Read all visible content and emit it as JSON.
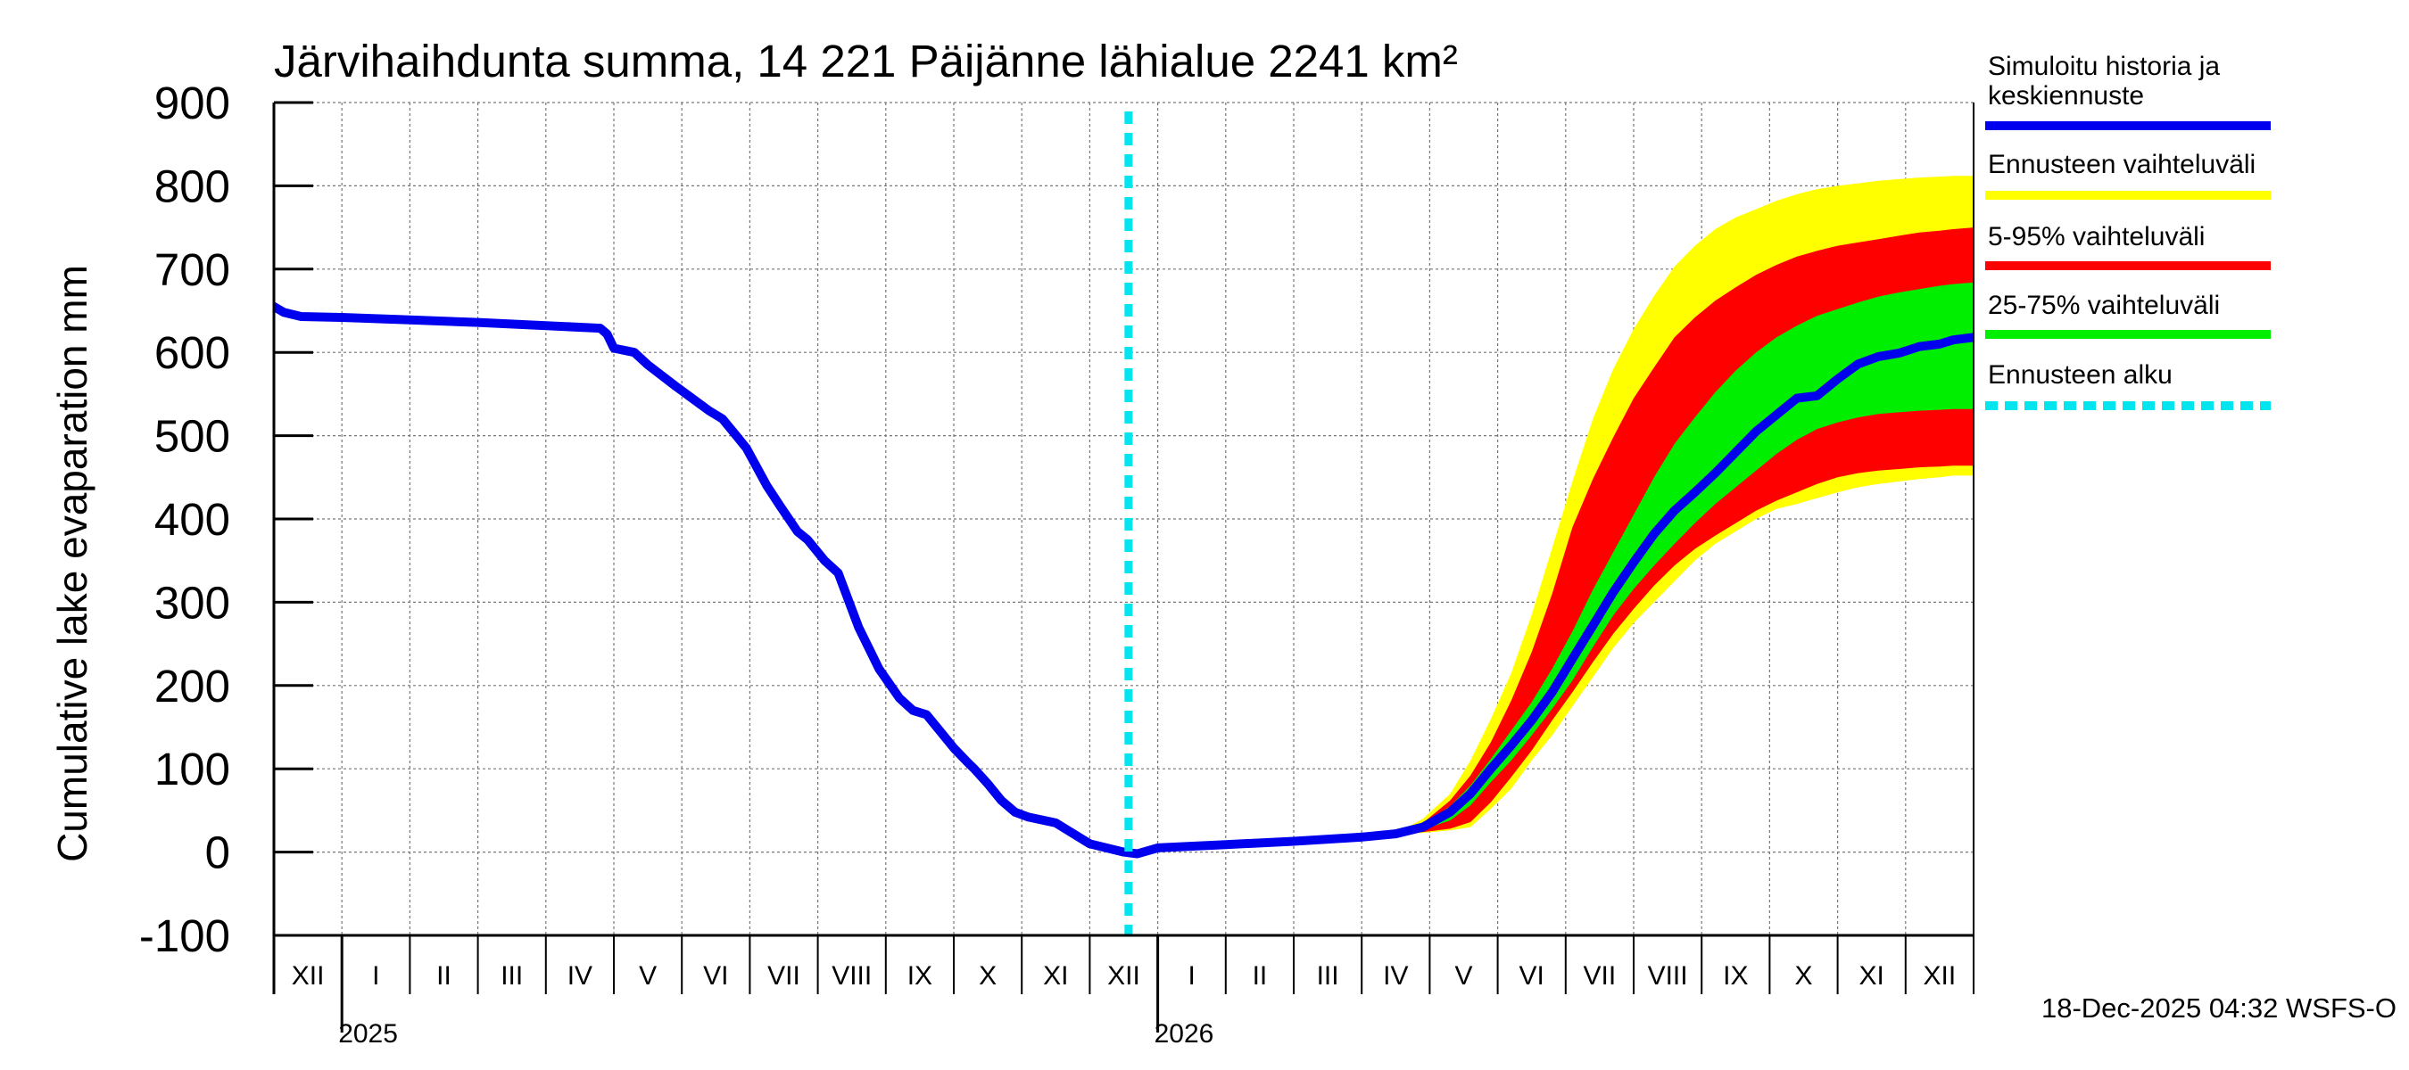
{
  "chart_data": {
    "type": "area",
    "title": "Järvihaihdunta summa, 14 221 Päijänne lähialue 2241 km²",
    "ylabel": "Cumulative lake evaparation   mm",
    "ylim": [
      -100,
      900
    ],
    "y_ticks": [
      -100,
      0,
      100,
      200,
      300,
      400,
      500,
      600,
      700,
      800,
      900
    ],
    "xlim": [
      -1.0,
      24.0
    ],
    "month_labels": [
      {
        "label": "XII",
        "x": -0.5
      },
      {
        "label": "I",
        "x": 0.5
      },
      {
        "label": "II",
        "x": 1.5
      },
      {
        "label": "III",
        "x": 2.5
      },
      {
        "label": "IV",
        "x": 3.5
      },
      {
        "label": "V",
        "x": 4.5
      },
      {
        "label": "VI",
        "x": 5.5
      },
      {
        "label": "VII",
        "x": 6.5
      },
      {
        "label": "VIII",
        "x": 7.5
      },
      {
        "label": "IX",
        "x": 8.5
      },
      {
        "label": "X",
        "x": 9.5
      },
      {
        "label": "XI",
        "x": 10.5
      },
      {
        "label": "XII",
        "x": 11.5
      },
      {
        "label": "I",
        "x": 12.5
      },
      {
        "label": "II",
        "x": 13.5
      },
      {
        "label": "III",
        "x": 14.5
      },
      {
        "label": "IV",
        "x": 15.5
      },
      {
        "label": "V",
        "x": 16.5
      },
      {
        "label": "VI",
        "x": 17.5
      },
      {
        "label": "VII",
        "x": 18.5
      },
      {
        "label": "VIII",
        "x": 19.5
      },
      {
        "label": "IX",
        "x": 20.5
      },
      {
        "label": "X",
        "x": 21.5
      },
      {
        "label": "XI",
        "x": 22.5
      },
      {
        "label": "XII",
        "x": 23.5
      }
    ],
    "year_labels": [
      {
        "label": "2025",
        "x": 0
      },
      {
        "label": "2026",
        "x": 12
      }
    ],
    "forecast_start_x": 11.57,
    "series": [
      {
        "name": "Simuloitu historia ja keskiennuste",
        "color": "#0000ee",
        "x": [
          -1.0,
          -0.85,
          -0.6,
          0,
          1,
          2,
          3.8,
          3.9,
          4.0,
          4.3,
          4.5,
          4.9,
          5.1,
          5.4,
          5.6,
          5.8,
          5.95,
          6.25,
          6.45,
          6.7,
          6.85,
          7.1,
          7.3,
          7.6,
          7.9,
          8.2,
          8.4,
          8.6,
          8.8,
          9.0,
          9.2,
          9.3,
          9.5,
          9.7,
          9.9,
          10.1,
          10.5,
          10.7,
          11.0,
          11.5,
          11.7,
          12.0,
          13,
          14,
          15,
          15.5,
          15.9,
          16.3,
          16.6,
          16.9,
          17.2,
          17.5,
          17.8,
          18.1,
          18.4,
          18.7,
          19.0,
          19.3,
          19.6,
          19.9,
          20.2,
          20.5,
          20.8,
          21.1,
          21.4,
          21.7,
          22.0,
          22.3,
          22.6,
          22.9,
          23.2,
          23.5,
          23.7,
          24.0
        ],
        "y": [
          655,
          648,
          643,
          642,
          639,
          636,
          629,
          622,
          605,
          600,
          585,
          560,
          548,
          530,
          520,
          500,
          485,
          440,
          415,
          385,
          375,
          350,
          335,
          270,
          220,
          185,
          170,
          165,
          145,
          125,
          108,
          100,
          82,
          62,
          48,
          42,
          35,
          25,
          10,
          0,
          -2,
          5,
          9,
          13,
          18,
          22,
          30,
          48,
          70,
          100,
          128,
          158,
          192,
          232,
          272,
          312,
          348,
          382,
          410,
          432,
          455,
          480,
          505,
          525,
          545,
          548,
          568,
          586,
          595,
          599,
          607,
          610,
          615,
          618
        ]
      }
    ],
    "bands": [
      {
        "name": "Ennusteen vaihteluväli",
        "color": "#ffff00",
        "x": [
          15.5,
          15.9,
          16.3,
          16.6,
          16.9,
          17.2,
          17.5,
          17.8,
          18.1,
          18.4,
          18.7,
          19.0,
          19.3,
          19.6,
          19.9,
          20.2,
          20.5,
          20.8,
          21.1,
          21.4,
          21.7,
          22.0,
          22.3,
          22.6,
          22.9,
          23.2,
          23.5,
          23.7,
          24.0
        ],
        "upper": [
          22,
          40,
          70,
          110,
          160,
          215,
          285,
          365,
          445,
          520,
          580,
          628,
          668,
          703,
          728,
          748,
          762,
          772,
          782,
          790,
          796,
          800,
          803,
          806,
          808,
          810,
          811,
          812,
          812
        ],
        "lower": [
          22,
          23,
          26,
          30,
          52,
          76,
          110,
          140,
          175,
          210,
          245,
          275,
          300,
          325,
          350,
          370,
          385,
          400,
          412,
          418,
          425,
          432,
          438,
          442,
          445,
          448,
          450,
          452,
          452
        ]
      },
      {
        "name": "5-95% vaihteluväli",
        "color": "#ff0000",
        "x": [
          15.5,
          15.9,
          16.3,
          16.6,
          16.9,
          17.2,
          17.5,
          17.8,
          18.1,
          18.4,
          18.7,
          19.0,
          19.3,
          19.6,
          19.9,
          20.2,
          20.5,
          20.8,
          21.1,
          21.4,
          21.7,
          22.0,
          22.3,
          22.6,
          22.9,
          23.2,
          23.5,
          23.7,
          24.0
        ],
        "upper": [
          22,
          35,
          62,
          92,
          132,
          182,
          240,
          310,
          390,
          448,
          498,
          545,
          582,
          618,
          642,
          662,
          678,
          693,
          705,
          715,
          722,
          728,
          732,
          736,
          740,
          744,
          746,
          748,
          750
        ],
        "lower": [
          22,
          24,
          28,
          36,
          60,
          90,
          122,
          158,
          192,
          228,
          262,
          292,
          320,
          344,
          364,
          380,
          395,
          410,
          422,
          432,
          442,
          450,
          455,
          458,
          460,
          462,
          463,
          464,
          464
        ]
      },
      {
        "name": "25-75% vaihteluväli",
        "color": "#00ee00",
        "x": [
          15.5,
          15.9,
          16.3,
          16.6,
          16.9,
          17.2,
          17.5,
          17.8,
          18.1,
          18.4,
          18.7,
          19.0,
          19.3,
          19.6,
          19.9,
          20.2,
          20.5,
          20.8,
          21.1,
          21.4,
          21.7,
          22.0,
          22.3,
          22.6,
          22.9,
          23.2,
          23.5,
          23.7,
          24.0
        ],
        "upper": [
          22,
          33,
          55,
          80,
          112,
          146,
          180,
          220,
          265,
          315,
          360,
          405,
          450,
          490,
          522,
          552,
          578,
          600,
          618,
          632,
          644,
          652,
          660,
          667,
          672,
          676,
          680,
          682,
          684
        ],
        "lower": [
          22,
          27,
          38,
          56,
          84,
          110,
          140,
          172,
          206,
          246,
          284,
          316,
          344,
          370,
          395,
          418,
          438,
          458,
          478,
          495,
          508,
          516,
          522,
          526,
          528,
          530,
          531,
          532,
          532
        ]
      }
    ],
    "legend_placement": "right"
  },
  "legend": {
    "items": [
      {
        "label": "Simuloitu historia ja",
        "label2": "keskiennuste",
        "color": "#0000ee",
        "style": "solid"
      },
      {
        "label": "Ennusteen vaihteluväli",
        "color": "#ffff00",
        "style": "solid"
      },
      {
        "label": "5-95% vaihteluväli",
        "color": "#ff0000",
        "style": "solid"
      },
      {
        "label": "25-75% vaihteluväli",
        "color": "#00ee00",
        "style": "solid"
      },
      {
        "label": "Ennusteen alku",
        "color": "#00e5ee",
        "style": "dotted"
      }
    ]
  },
  "footer": "18-Dec-2025 04:32 WSFS-O",
  "colors": {
    "grid": "#777777",
    "axis": "#000000",
    "forecast_line": "#00e5ee"
  }
}
